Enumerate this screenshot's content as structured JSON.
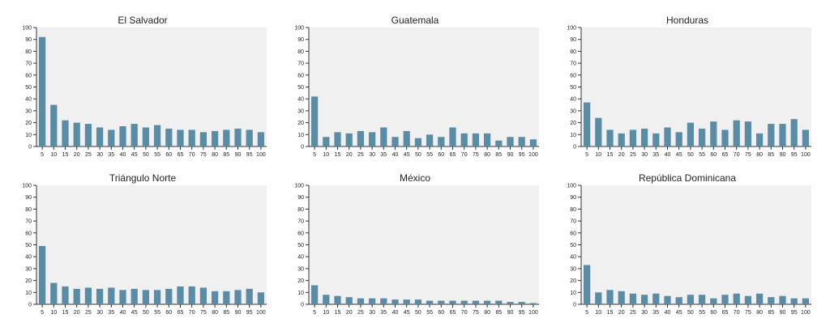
{
  "colors": {
    "bar": "#5b8ca5",
    "plot_bg": "#f0f0f0",
    "axis": "#333333",
    "text": "#222222"
  },
  "chart_data": [
    {
      "type": "bar",
      "title": "El Salvador",
      "ylim": [
        0,
        100
      ],
      "yticks": [
        0,
        10,
        20,
        30,
        40,
        50,
        60,
        70,
        80,
        90,
        100
      ],
      "categories": [
        "5",
        "10",
        "15",
        "20",
        "25",
        "30",
        "35",
        "40",
        "45",
        "50",
        "55",
        "60",
        "65",
        "70",
        "75",
        "80",
        "85",
        "90",
        "95",
        "100"
      ],
      "values": [
        92,
        35,
        22,
        20,
        19,
        16,
        14,
        17,
        19,
        16,
        18,
        15,
        14,
        14,
        12,
        13,
        14,
        15,
        14,
        12
      ]
    },
    {
      "type": "bar",
      "title": "Guatemala",
      "ylim": [
        0,
        100
      ],
      "yticks": [
        0,
        10,
        20,
        30,
        40,
        50,
        60,
        70,
        80,
        90,
        100
      ],
      "categories": [
        "5",
        "10",
        "15",
        "20",
        "25",
        "30",
        "35",
        "40",
        "45",
        "50",
        "55",
        "60",
        "65",
        "70",
        "75",
        "80",
        "85",
        "90",
        "95",
        "100"
      ],
      "values": [
        42,
        8,
        12,
        11,
        13,
        12,
        16,
        8,
        13,
        7,
        10,
        8,
        16,
        11,
        11,
        11,
        5,
        8,
        8,
        6
      ]
    },
    {
      "type": "bar",
      "title": "Honduras",
      "ylim": [
        0,
        100
      ],
      "yticks": [
        0,
        10,
        20,
        30,
        40,
        50,
        60,
        70,
        80,
        90,
        100
      ],
      "categories": [
        "5",
        "10",
        "15",
        "20",
        "25",
        "30",
        "35",
        "40",
        "45",
        "50",
        "55",
        "60",
        "65",
        "70",
        "75",
        "80",
        "85",
        "90",
        "95",
        "100"
      ],
      "values": [
        37,
        24,
        14,
        11,
        14,
        15,
        11,
        16,
        12,
        20,
        15,
        21,
        14,
        22,
        21,
        11,
        19,
        19,
        23,
        14
      ]
    },
    {
      "type": "bar",
      "title": "Triángulo Norte",
      "ylim": [
        0,
        100
      ],
      "yticks": [
        0,
        10,
        20,
        30,
        40,
        50,
        60,
        70,
        80,
        90,
        100
      ],
      "categories": [
        "5",
        "10",
        "15",
        "20",
        "25",
        "30",
        "35",
        "40",
        "45",
        "50",
        "55",
        "60",
        "65",
        "70",
        "75",
        "80",
        "85",
        "90",
        "95",
        "100"
      ],
      "values": [
        49,
        18,
        15,
        13,
        14,
        13,
        14,
        12,
        13,
        12,
        12,
        13,
        15,
        15,
        14,
        11,
        11,
        12,
        13,
        10
      ]
    },
    {
      "type": "bar",
      "title": "México",
      "ylim": [
        0,
        100
      ],
      "yticks": [
        0,
        10,
        20,
        30,
        40,
        50,
        60,
        70,
        80,
        90,
        100
      ],
      "categories": [
        "5",
        "10",
        "15",
        "20",
        "25",
        "30",
        "35",
        "40",
        "45",
        "50",
        "55",
        "60",
        "65",
        "70",
        "75",
        "80",
        "85",
        "90",
        "95",
        "100"
      ],
      "values": [
        16,
        8,
        7,
        6,
        5,
        5,
        5,
        4,
        4,
        4,
        3,
        3,
        3,
        3,
        3,
        3,
        3,
        2,
        2,
        1
      ]
    },
    {
      "type": "bar",
      "title": "República Dominicana",
      "ylim": [
        0,
        100
      ],
      "yticks": [
        0,
        10,
        20,
        30,
        40,
        50,
        60,
        70,
        80,
        90,
        100
      ],
      "categories": [
        "5",
        "10",
        "15",
        "20",
        "25",
        "30",
        "35",
        "40",
        "45",
        "50",
        "55",
        "60",
        "65",
        "70",
        "75",
        "80",
        "85",
        "90",
        "95",
        "100"
      ],
      "values": [
        33,
        10,
        12,
        11,
        9,
        8,
        9,
        7,
        6,
        8,
        8,
        5,
        8,
        9,
        7,
        9,
        6,
        7,
        5,
        5
      ]
    }
  ]
}
